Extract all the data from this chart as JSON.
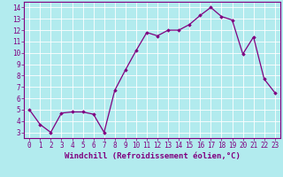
{
  "x": [
    0,
    1,
    2,
    3,
    4,
    5,
    6,
    7,
    8,
    9,
    10,
    11,
    12,
    13,
    14,
    15,
    16,
    17,
    18,
    19,
    20,
    21,
    22,
    23
  ],
  "y": [
    5,
    3.7,
    3,
    4.7,
    4.8,
    4.8,
    4.6,
    3,
    6.7,
    8.5,
    10.2,
    11.8,
    11.5,
    12,
    12,
    12.5,
    13.3,
    14,
    13.2,
    12.9,
    9.9,
    11.4,
    7.7,
    6.5
  ],
  "line_color": "#800080",
  "marker": "D",
  "marker_size": 1.8,
  "linewidth": 0.9,
  "xlabel": "Windchill (Refroidissement éolien,°C)",
  "xlabel_fontsize": 6.5,
  "xlim": [
    -0.5,
    23.5
  ],
  "ylim": [
    2.5,
    14.5
  ],
  "yticks": [
    3,
    4,
    5,
    6,
    7,
    8,
    9,
    10,
    11,
    12,
    13,
    14
  ],
  "xticks": [
    0,
    1,
    2,
    3,
    4,
    5,
    6,
    7,
    8,
    9,
    10,
    11,
    12,
    13,
    14,
    15,
    16,
    17,
    18,
    19,
    20,
    21,
    22,
    23
  ],
  "background_color": "#b2ebee",
  "grid_color": "#c8e8ec",
  "tick_color": "#800080",
  "tick_fontsize": 5.5,
  "xlabel_color": "#800080"
}
